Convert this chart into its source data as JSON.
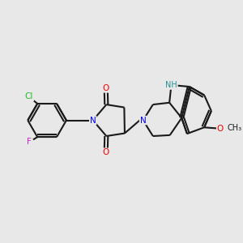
{
  "bg": "#e8e8e8",
  "bond_color": "#1a1a1a",
  "lw": 1.5,
  "atom_colors": {
    "O": "#ee0000",
    "N": "#0000ee",
    "NH": "#2a9090",
    "Cl": "#22bb22",
    "F": "#cc22cc"
  },
  "fs": 7.5,
  "figsize": [
    3.0,
    3.0
  ],
  "dpi": 100
}
